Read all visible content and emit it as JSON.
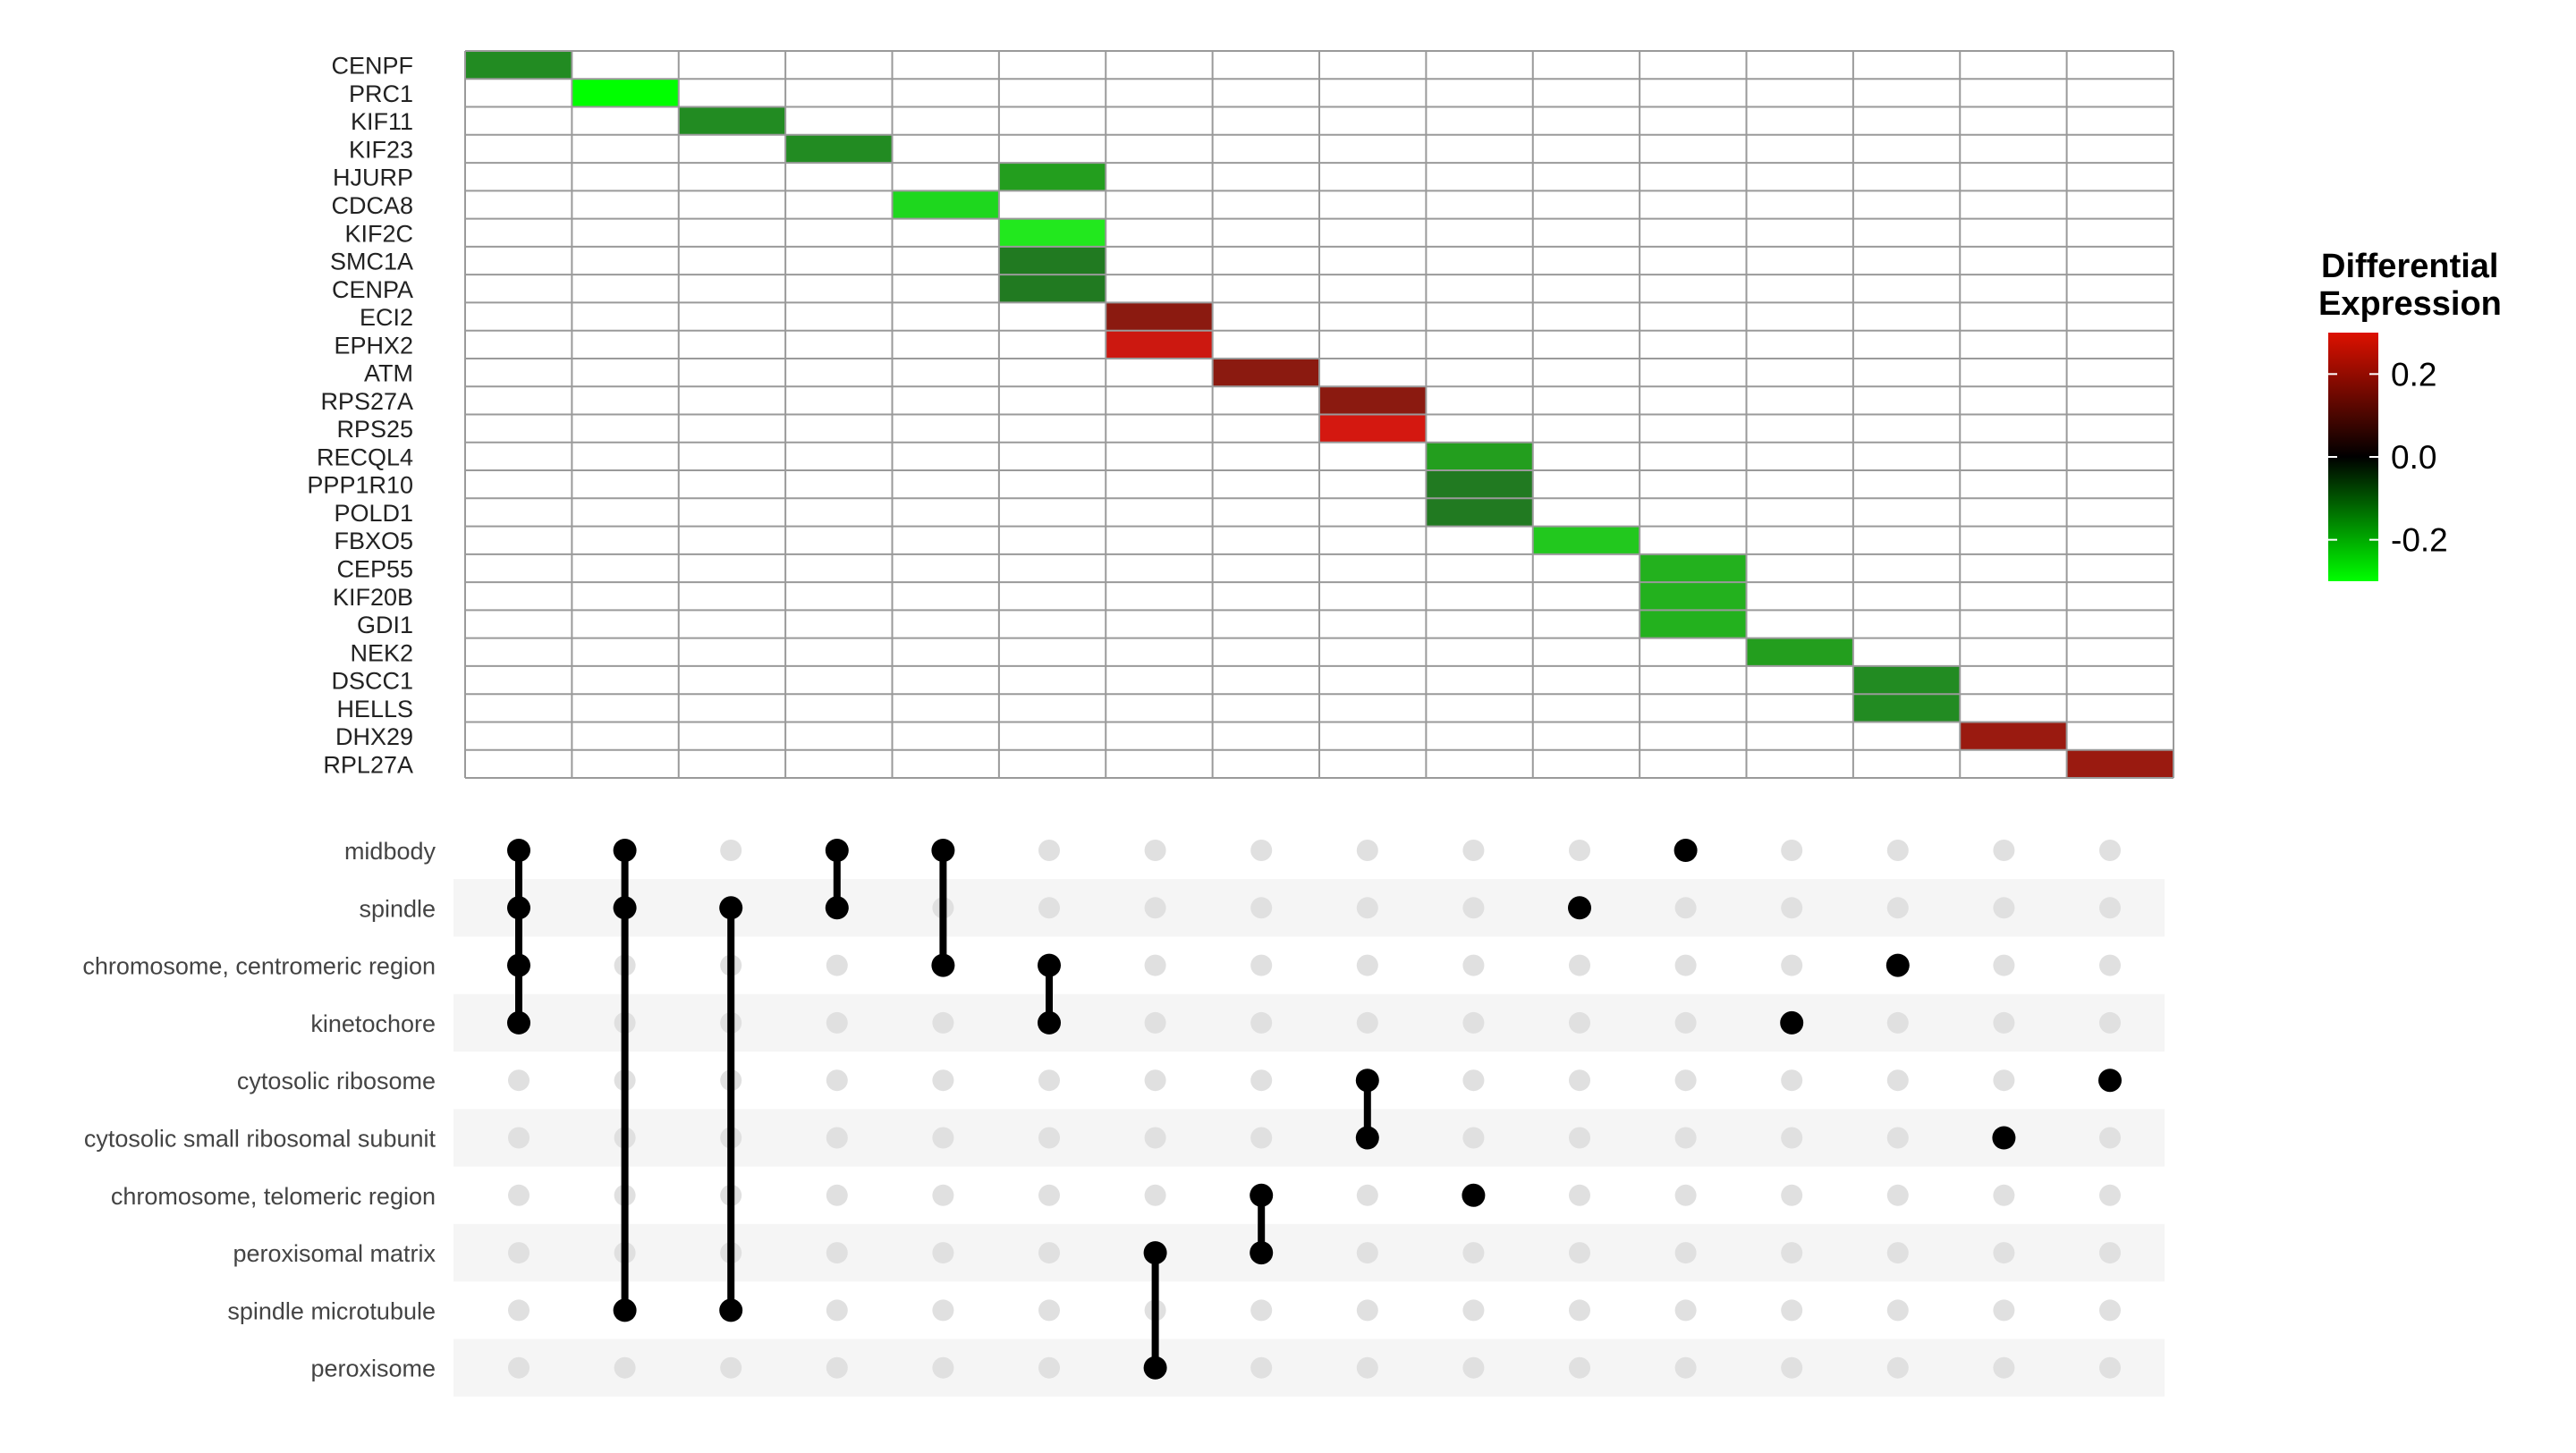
{
  "chart_data": [
    {
      "type": "heatmap",
      "genes": [
        "CENPF",
        "PRC1",
        "KIF11",
        "KIF23",
        "HJURP",
        "CDCA8",
        "KIF2C",
        "SMC1A",
        "CENPA",
        "ECI2",
        "EPHX2",
        "ATM",
        "RPS27A",
        "RPS25",
        "RECQL4",
        "PPP1R10",
        "POLD1",
        "FBXO5",
        "CEP55",
        "KIF20B",
        "GDI1",
        "NEK2",
        "DSCC1",
        "HELLS",
        "DHX29",
        "RPL27A"
      ],
      "column_count": 16,
      "cells": [
        {
          "gene": "CENPF",
          "col": 1,
          "color": "#228B22"
        },
        {
          "gene": "PRC1",
          "col": 2,
          "color": "#00FF00"
        },
        {
          "gene": "KIF11",
          "col": 3,
          "color": "#228B22"
        },
        {
          "gene": "KIF23",
          "col": 4,
          "color": "#228B22"
        },
        {
          "gene": "HJURP",
          "col": 6,
          "color": "#239E1E"
        },
        {
          "gene": "CDCA8",
          "col": 5,
          "color": "#1ED71E"
        },
        {
          "gene": "KIF2C",
          "col": 6,
          "color": "#22E81E"
        },
        {
          "gene": "SMC1A",
          "col": 6,
          "color": "#217A21"
        },
        {
          "gene": "CENPA",
          "col": 6,
          "color": "#217A21"
        },
        {
          "gene": "ECI2",
          "col": 7,
          "color": "#8B1A10"
        },
        {
          "gene": "EPHX2",
          "col": 7,
          "color": "#CC1810"
        },
        {
          "gene": "ATM",
          "col": 8,
          "color": "#8B1A10"
        },
        {
          "gene": "RPS27A",
          "col": 9,
          "color": "#8B1A10"
        },
        {
          "gene": "RPS25",
          "col": 9,
          "color": "#D41810"
        },
        {
          "gene": "RECQL4",
          "col": 10,
          "color": "#239E1E"
        },
        {
          "gene": "PPP1R10",
          "col": 10,
          "color": "#217A21"
        },
        {
          "gene": "POLD1",
          "col": 10,
          "color": "#217A21"
        },
        {
          "gene": "FBXO5",
          "col": 11,
          "color": "#22C81E"
        },
        {
          "gene": "CEP55",
          "col": 12,
          "color": "#23B11E"
        },
        {
          "gene": "KIF20B",
          "col": 12,
          "color": "#23B11E"
        },
        {
          "gene": "GDI1",
          "col": 12,
          "color": "#23B11E"
        },
        {
          "gene": "NEK2",
          "col": 13,
          "color": "#239E1E"
        },
        {
          "gene": "DSCC1",
          "col": 14,
          "color": "#228B22"
        },
        {
          "gene": "HELLS",
          "col": 14,
          "color": "#228B22"
        },
        {
          "gene": "DHX29",
          "col": 15,
          "color": "#9A1A10"
        },
        {
          "gene": "RPL27A",
          "col": 16,
          "color": "#9A1A10"
        }
      ],
      "legend": {
        "title_line1": "Differential",
        "title_line2": "Expression",
        "ticks": [
          {
            "label": "0.2",
            "value": 0.2
          },
          {
            "label": "0.0",
            "value": 0.0
          },
          {
            "label": "-0.2",
            "value": -0.2
          }
        ],
        "range": [
          -0.3,
          0.3
        ],
        "gradient": [
          "#00FF00",
          "#000000",
          "#DD1100"
        ],
        "placement": "right"
      }
    },
    {
      "type": "upset",
      "sets": [
        "midbody",
        "spindle",
        "chromosome, centromeric region",
        "kinetochore",
        "cytosolic ribosome",
        "cytosolic small ribosomal subunit",
        "chromosome, telomeric region",
        "peroxisomal matrix",
        "spindle microtubule",
        "peroxisome"
      ],
      "column_count": 16,
      "intersections": [
        [
          "midbody",
          "spindle",
          "chromosome, centromeric region",
          "kinetochore"
        ],
        [
          "midbody",
          "spindle",
          "spindle microtubule"
        ],
        [
          "spindle",
          "spindle microtubule"
        ],
        [
          "midbody",
          "spindle"
        ],
        [
          "midbody",
          "chromosome, centromeric region"
        ],
        [
          "chromosome, centromeric region",
          "kinetochore"
        ],
        [
          "peroxisomal matrix",
          "peroxisome"
        ],
        [
          "chromosome, telomeric region",
          "peroxisomal matrix"
        ],
        [
          "cytosolic ribosome",
          "cytosolic small ribosomal subunit"
        ],
        [
          "chromosome, telomeric region"
        ],
        [
          "spindle"
        ],
        [
          "midbody"
        ],
        [
          "kinetochore"
        ],
        [
          "chromosome, centromeric region"
        ],
        [
          "cytosolic small ribosomal subunit"
        ],
        [
          "cytosolic ribosome"
        ]
      ],
      "active_color": "#000000",
      "inactive_color": "#E0E0E0",
      "stripe_color": "#F5F5F5"
    }
  ]
}
